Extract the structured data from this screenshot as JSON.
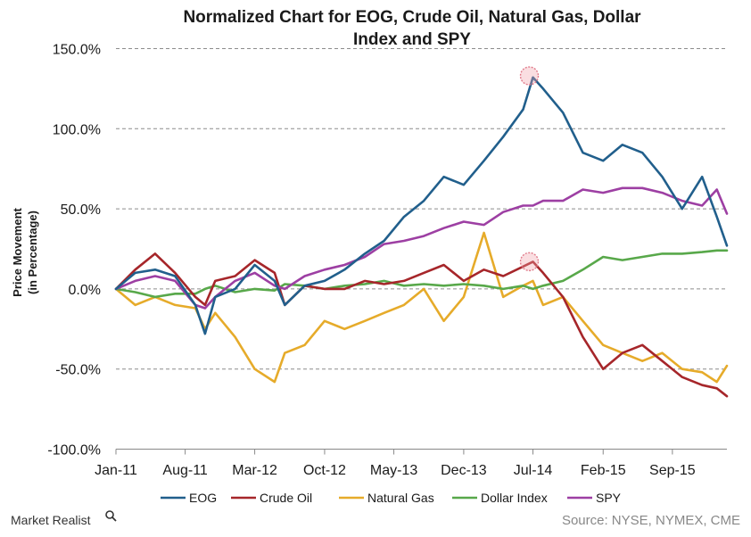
{
  "chart_data": {
    "type": "line",
    "title_line1": "Normalized Chart for EOG, Crude Oil, Natural Gas, Dollar",
    "title_line2": "Index and SPY",
    "ylabel_line1": "Price Movement",
    "ylabel_line2": "(in Percentage)",
    "xlabel": "",
    "ylim": [
      -100,
      150
    ],
    "yticks": [
      150,
      100,
      50,
      0,
      -50,
      -100
    ],
    "ytick_labels": [
      "150.0%",
      "100.0%",
      "50.0%",
      "0.0%",
      "-50.0%",
      "-100.0%"
    ],
    "xlim": [
      "2011-01-01",
      "2016-02-15"
    ],
    "xticks": [
      "2011-01-01",
      "2011-08-01",
      "2012-03-01",
      "2012-10-01",
      "2013-05-01",
      "2013-12-01",
      "2014-07-01",
      "2015-02-01",
      "2015-09-01"
    ],
    "xtick_labels": [
      "Jan-11",
      "Aug-11",
      "Mar-12",
      "Oct-12",
      "May-13",
      "Dec-13",
      "Jul-14",
      "Feb-15",
      "Sep-15"
    ],
    "grid": "horizontal dashed",
    "legend_position": "bottom",
    "x": [
      "2011-01-01",
      "2011-03-01",
      "2011-05-01",
      "2011-07-01",
      "2011-09-01",
      "2011-10-01",
      "2011-11-01",
      "2012-01-01",
      "2012-03-01",
      "2012-05-01",
      "2012-06-01",
      "2012-08-01",
      "2012-10-01",
      "2012-12-01",
      "2013-02-01",
      "2013-04-01",
      "2013-06-01",
      "2013-08-01",
      "2013-10-01",
      "2013-12-01",
      "2014-02-01",
      "2014-04-01",
      "2014-06-01",
      "2014-07-01",
      "2014-08-01",
      "2014-10-01",
      "2014-12-01",
      "2015-02-01",
      "2015-04-01",
      "2015-06-01",
      "2015-08-01",
      "2015-10-01",
      "2015-12-01",
      "2016-01-15",
      "2016-02-15"
    ],
    "series": [
      {
        "name": "EOG",
        "color": "#215f8c",
        "values": [
          0,
          10,
          12,
          8,
          -10,
          -28,
          -5,
          0,
          15,
          5,
          -10,
          2,
          5,
          12,
          22,
          30,
          45,
          55,
          70,
          65,
          80,
          95,
          112,
          132,
          125,
          110,
          85,
          80,
          90,
          85,
          70,
          50,
          70,
          45,
          27
        ]
      },
      {
        "name": "Crude Oil",
        "color": "#a6262a",
        "values": [
          0,
          12,
          22,
          10,
          -5,
          -10,
          5,
          8,
          18,
          10,
          -10,
          2,
          0,
          0,
          5,
          3,
          5,
          10,
          15,
          5,
          12,
          8,
          14,
          17,
          10,
          -5,
          -30,
          -50,
          -40,
          -35,
          -45,
          -55,
          -60,
          -62,
          -67
        ]
      },
      {
        "name": "Natural Gas",
        "color": "#e6ab2a",
        "values": [
          0,
          -10,
          -5,
          -10,
          -12,
          -25,
          -15,
          -30,
          -50,
          -58,
          -40,
          -35,
          -20,
          -25,
          -20,
          -15,
          -10,
          0,
          -20,
          -5,
          35,
          -5,
          2,
          5,
          -10,
          -5,
          -20,
          -35,
          -40,
          -45,
          -40,
          -50,
          -52,
          -58,
          -48
        ]
      },
      {
        "name": "Dollar Index",
        "color": "#58a84a",
        "values": [
          0,
          -2,
          -5,
          -3,
          -3,
          0,
          2,
          -2,
          0,
          -1,
          3,
          2,
          0,
          2,
          3,
          5,
          2,
          3,
          2,
          3,
          2,
          0,
          2,
          0,
          2,
          5,
          12,
          20,
          18,
          20,
          22,
          22,
          23,
          24,
          24
        ]
      },
      {
        "name": "SPY",
        "color": "#9d3fa3",
        "values": [
          0,
          5,
          8,
          5,
          -10,
          -12,
          -5,
          5,
          10,
          2,
          0,
          8,
          12,
          15,
          20,
          28,
          30,
          33,
          38,
          42,
          40,
          48,
          52,
          52,
          55,
          55,
          62,
          60,
          63,
          63,
          60,
          55,
          52,
          62,
          47
        ]
      }
    ],
    "highlight_circles": [
      {
        "series": "EOG",
        "x": "2014-06-20",
        "y": 133
      },
      {
        "series": "Crude Oil",
        "x": "2014-06-20",
        "y": 17
      }
    ]
  },
  "source_text": "Source: NYSE, NYMEX, CME",
  "brand": {
    "name": "Market Realist",
    "logo_icon": "magnifier-icon"
  }
}
